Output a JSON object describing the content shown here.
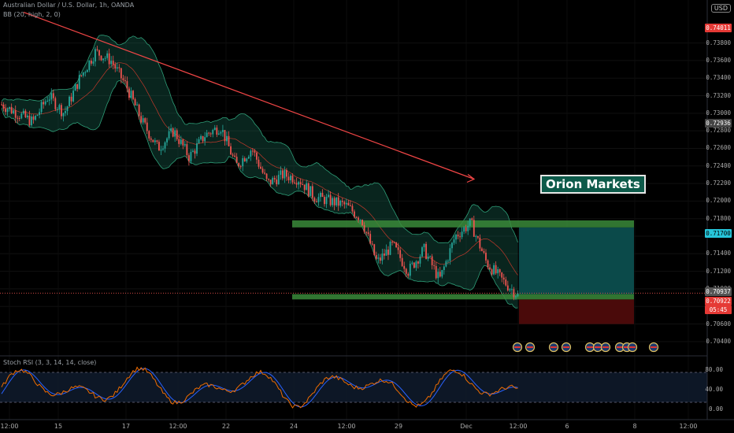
{
  "header": {
    "symbol_line": "Australian Dollar / U.S. Dollar, 1h, OANDA",
    "bb_legend": "BB (20, high, 2, 0)",
    "stoch_legend": "Stoch RSI (3, 3, 14, 14, close)",
    "currency": "USD"
  },
  "overlay": {
    "brand": "Orion Markets"
  },
  "colors": {
    "bull": "#26a69a",
    "bear": "#ef5350",
    "trend": "#f24646",
    "bb_band": "#1b6b55",
    "zone": "#3a8a3a",
    "target": "#0b4a4a",
    "stop": "#4a0a0a",
    "k_line": "#ef6c00",
    "d_line": "#2962ff"
  },
  "badges": {
    "top": "0.74011",
    "mid": "0.72936",
    "entry_top": "0.71700",
    "cur1": "0.70937",
    "cur2": "0.70922",
    "countdown": "05:45"
  },
  "chart_data": {
    "type": "candlestick",
    "price_range": [
      0.703,
      0.742
    ],
    "y_ticks": [
      "0.71800",
      "0.71600",
      "0.71400",
      "0.71200",
      "0.71000",
      "0.70800",
      "0.70600",
      "0.70400",
      "0.73800",
      "0.73600",
      "0.73400",
      "0.73200",
      "0.73000",
      "0.72800",
      "0.72600",
      "0.72400",
      "0.72200",
      "0.72000"
    ],
    "x_ticks": [
      "12:00",
      "15",
      "17",
      "12:00",
      "22",
      "24",
      "12:00",
      "29",
      "Dec",
      "12:00",
      "6",
      "8",
      "12:00"
    ],
    "stoch_ticks": [
      "80.00",
      "40.00",
      "0.00"
    ],
    "support_zone": [
      0.7088,
      0.7094
    ],
    "resistance_zone": [
      0.717,
      0.7178
    ],
    "target_box": [
      0.7094,
      0.717
    ],
    "stop_box": [
      0.706,
      0.7088
    ],
    "trendline": {
      "from_price": 0.7415,
      "to_price": 0.7225
    },
    "price_path": [
      0.731,
      0.73,
      0.729,
      0.732,
      0.73,
      0.734,
      0.737,
      0.736,
      0.733,
      0.729,
      0.726,
      0.728,
      0.725,
      0.7275,
      0.7285,
      0.724,
      0.726,
      0.722,
      0.723,
      0.7225,
      0.7205,
      0.72,
      0.7195,
      0.718,
      0.713,
      0.715,
      0.712,
      0.7145,
      0.711,
      0.716,
      0.7175,
      0.713,
      0.711,
      0.7093
    ]
  }
}
